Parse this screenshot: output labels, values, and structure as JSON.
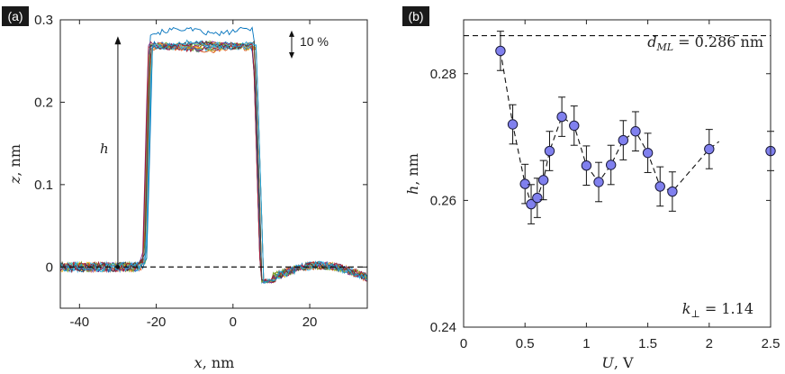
{
  "chart_data": [
    {
      "panel_label": "(a)",
      "type": "line",
      "xlabel_var": "x",
      "xlabel_unit": ", nm",
      "ylabel_var": "z",
      "ylabel_unit": ", nm",
      "xlim": [
        -45,
        35
      ],
      "ylim": [
        -0.05,
        0.3
      ],
      "xticks": [
        -40,
        -20,
        0,
        20
      ],
      "yticks": [
        0,
        0.1,
        0.2,
        0.3
      ],
      "xtick_labels": [
        "-40",
        "-20",
        "0",
        "20"
      ],
      "ytick_labels": [
        "0",
        "0.1",
        "0.2",
        "0.3"
      ],
      "baseline_y": 0,
      "step_profile": {
        "left_edge_x": -23,
        "right_edge_x": 6.5,
        "plateau_center_z": 0.27,
        "plateau_spread_z": 0.02,
        "num_traces": 16
      },
      "h_arrow": {
        "x": -30,
        "from_z": 0,
        "to_z": 0.28,
        "label": "h"
      },
      "scale_note": {
        "label": "10 %",
        "from_z": 0.287,
        "to_z": 0.253
      },
      "series_colors": [
        "#0072BD",
        "#D95319",
        "#EDB120",
        "#7E2F8E",
        "#77AC30",
        "#4DBEEE",
        "#A2142F",
        "#0072BD",
        "#D95319",
        "#EDB120",
        "#7E2F8E",
        "#77AC30",
        "#4DBEEE",
        "#A2142F",
        "#404040",
        "#1f9fd0"
      ]
    },
    {
      "panel_label": "(b)",
      "type": "scatter",
      "xlabel_var": "U",
      "xlabel_unit": ", V",
      "ylabel_var": "h",
      "ylabel_unit": ", nm",
      "xlim": [
        0,
        2.5
      ],
      "ylim": [
        0.24,
        0.2885
      ],
      "xticks": [
        0,
        0.5,
        1,
        1.5,
        2,
        2.5
      ],
      "yticks": [
        0.24,
        0.26,
        0.28
      ],
      "xtick_labels": [
        "0",
        "0.5",
        "1",
        "1.5",
        "2",
        "2.5"
      ],
      "ytick_labels": [
        "0.24",
        "0.26",
        "0.28"
      ],
      "x": [
        0.3,
        0.4,
        0.5,
        0.55,
        0.6,
        0.65,
        0.7,
        0.8,
        0.9,
        1.0,
        1.1,
        1.2,
        1.3,
        1.4,
        1.5,
        1.6,
        1.7,
        2.0,
        2.5
      ],
      "y": [
        0.2836,
        0.272,
        0.2626,
        0.2594,
        0.2604,
        0.2632,
        0.2678,
        0.2732,
        0.2718,
        0.2655,
        0.2629,
        0.2656,
        0.2695,
        0.2709,
        0.2675,
        0.2622,
        0.2614,
        0.2681,
        0.2678
      ],
      "yerr": 0.0031,
      "trend_x": [
        0.3,
        0.4,
        0.5,
        0.55,
        0.6,
        0.65,
        0.7,
        0.8,
        0.9,
        1.0,
        1.1,
        1.2,
        1.3,
        1.4,
        1.5,
        1.6,
        1.7,
        2.0,
        2.08
      ],
      "trend_y": [
        0.2836,
        0.272,
        0.2626,
        0.2594,
        0.2604,
        0.2632,
        0.2678,
        0.2732,
        0.2718,
        0.2655,
        0.2629,
        0.2656,
        0.2695,
        0.2709,
        0.2675,
        0.2622,
        0.2614,
        0.2681,
        0.2693
      ],
      "hline_y": 0.286,
      "hline_label_var": "d",
      "hline_label_sub": "ML",
      "hline_label_val": " = 0.286 nm",
      "k_label_var": "k",
      "k_label_sub": "⊥",
      "k_label_val": " = 1.14",
      "marker_color": "#8080ee"
    }
  ]
}
